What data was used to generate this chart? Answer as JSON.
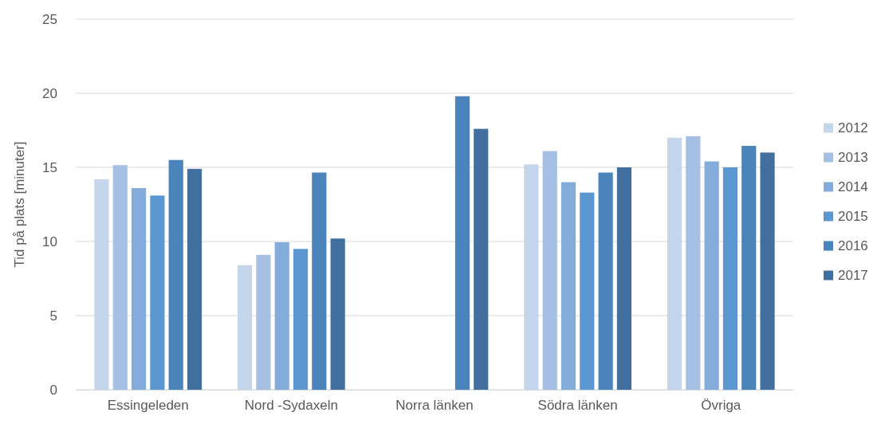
{
  "chart_data": {
    "type": "bar",
    "ylabel": "Tid på plats [minuter]",
    "categories": [
      "Essingeleden",
      "Nord -Sydaxeln",
      "Norra länken",
      "Södra länken",
      "Övriga"
    ],
    "series": [
      {
        "name": "2012",
        "color": "#c5d5ec",
        "values": [
          14.2,
          8.4,
          null,
          15.2,
          17.0
        ]
      },
      {
        "name": "2013",
        "color": "#a6c0e3",
        "values": [
          15.15,
          9.1,
          null,
          16.1,
          17.1
        ]
      },
      {
        "name": "2014",
        "color": "#83acdb",
        "values": [
          13.6,
          9.95,
          null,
          14.0,
          15.4
        ]
      },
      {
        "name": "2015",
        "color": "#5b97d0",
        "values": [
          13.1,
          9.5,
          null,
          13.3,
          15.0
        ]
      },
      {
        "name": "2016",
        "color": "#4a84bb",
        "values": [
          15.5,
          14.65,
          19.8,
          14.65,
          16.45
        ]
      },
      {
        "name": "2017",
        "color": "#416f9f",
        "values": [
          14.9,
          10.2,
          17.6,
          15.0,
          16.0
        ]
      }
    ],
    "ylim": [
      0,
      25
    ],
    "yticks": [
      0,
      5,
      10,
      15,
      20,
      25
    ],
    "grid": "y",
    "legend": "right"
  }
}
